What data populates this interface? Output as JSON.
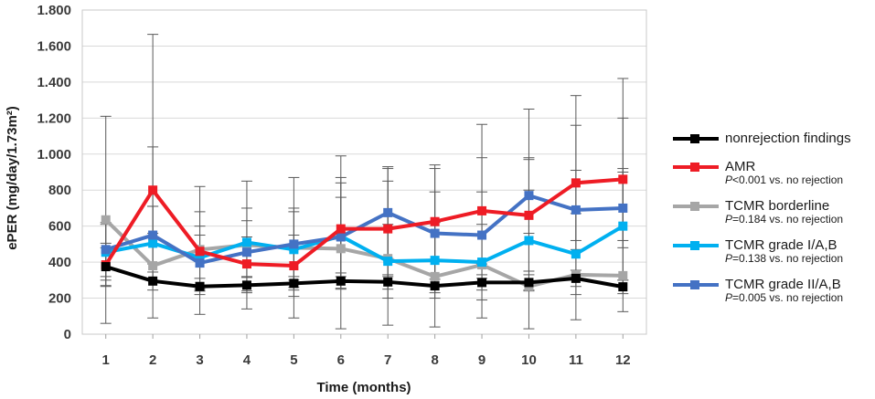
{
  "chart_data": {
    "type": "line",
    "xlabel": "Time (months)",
    "ylabel": "ePER (mg/day/1.73m²)",
    "ylim": [
      0,
      1800
    ],
    "yticks": [
      0,
      200,
      400,
      600,
      800,
      1000,
      1200,
      1400,
      1600,
      1800
    ],
    "ytick_labels": [
      "0",
      "200",
      "400",
      "600",
      "800",
      "1.000",
      "1.200",
      "1.400",
      "1.600",
      "1.800"
    ],
    "x": [
      1,
      2,
      3,
      4,
      5,
      6,
      7,
      8,
      9,
      10,
      11,
      12
    ],
    "x_labels": [
      "1",
      "2",
      "3",
      "4",
      "5",
      "6",
      "7",
      "8",
      "9",
      "10",
      "11",
      "12"
    ],
    "grid": true,
    "legend_position": "right",
    "series": [
      {
        "name": "nonrejection findings",
        "note_p": "",
        "note_rest": "",
        "color": "#000000",
        "values": [
          375,
          295,
          265,
          272,
          282,
          295,
          290,
          268,
          287,
          287,
          310,
          263
        ],
        "error_low": [
          270,
          245,
          220,
          230,
          245,
          255,
          250,
          230,
          245,
          245,
          265,
          225
        ],
        "error_high": [
          480,
          345,
          310,
          315,
          320,
          340,
          330,
          305,
          330,
          330,
          355,
          300
        ]
      },
      {
        "name": "AMR",
        "note_p": "P",
        "note_rest": "<0.001 vs. no rejection",
        "color": "#ee1c25",
        "values": [
          385,
          800,
          460,
          390,
          380,
          585,
          585,
          625,
          685,
          660,
          840,
          860
        ],
        "error_low": [
          265,
          560,
          240,
          240,
          210,
          300,
          320,
          330,
          390,
          350,
          520,
          520
        ],
        "error_high": [
          505,
          1040,
          680,
          540,
          550,
          870,
          850,
          920,
          980,
          970,
          1160,
          1200
        ]
      },
      {
        "name": "TCMR borderline",
        "note_p": "P",
        "note_rest": "=0.184 vs. no rejection",
        "color": "#a6a6a6",
        "values": [
          635,
          380,
          470,
          495,
          480,
          475,
          420,
          320,
          385,
          265,
          330,
          325
        ],
        "error_low": [
          60,
          90,
          110,
          140,
          90,
          30,
          50,
          40,
          90,
          30,
          80,
          125
        ],
        "error_high": [
          1210,
          1665,
          820,
          850,
          870,
          990,
          920,
          940,
          1165,
          1250,
          1325,
          1420
        ]
      },
      {
        "name": "TCMR grade I/A,B",
        "note_p": "P",
        "note_rest": "=0.138 vs. no rejection",
        "color": "#00b0f0",
        "values": [
          455,
          505,
          425,
          510,
          470,
          545,
          405,
          410,
          400,
          520,
          445,
          600
        ],
        "error_low": [
          300,
          300,
          250,
          320,
          260,
          250,
          200,
          200,
          190,
          240,
          220,
          300
        ],
        "error_high": [
          610,
          710,
          600,
          700,
          680,
          840,
          610,
          620,
          610,
          800,
          670,
          900
        ]
      },
      {
        "name": "TCMR grade II/A,B",
        "note_p": "P",
        "note_rest": "=0.005 vs. no rejection",
        "color": "#4472c4",
        "values": [
          470,
          550,
          395,
          455,
          500,
          540,
          675,
          560,
          550,
          770,
          690,
          700
        ],
        "error_low": [
          320,
          390,
          240,
          280,
          300,
          320,
          420,
          330,
          310,
          560,
          470,
          480
        ],
        "error_high": [
          620,
          710,
          550,
          630,
          700,
          760,
          930,
          790,
          790,
          980,
          910,
          920
        ]
      }
    ]
  }
}
